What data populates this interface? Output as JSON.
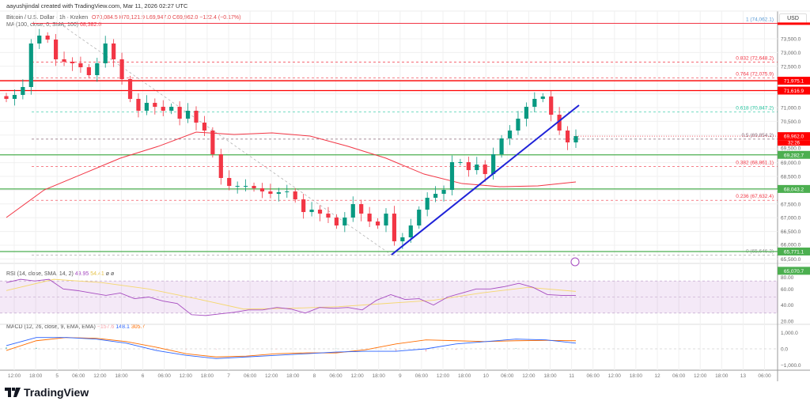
{
  "credit": "aayushjindal created with TradingView.com, Mar 11, 2026 02:27 UTC",
  "legend": {
    "symbol": "Bitcoin / U.S. Dollar · 1h · Kraken",
    "ohlc": "O70,084.5  H70,121.9  L69,947.0  C69,962.0  −122.4 (−0.17%)",
    "ma": "MA (100, close, 0, SMA, 100)",
    "ma_value": "68,382.0"
  },
  "currency": "USD",
  "brand": "TradingView",
  "countdown": "32:26",
  "colors": {
    "up": "#089981",
    "down": "#f23645",
    "ma": "#f23645",
    "trend": "#1e22d8",
    "rsi": "#a64bc0",
    "rsi_sma": "#f5d76e",
    "macd": "#2962ff",
    "signal": "#ff6d00",
    "support": "#4caf50",
    "resistance": "#ff0000"
  },
  "chart_data": {
    "type": "candlestick",
    "timeframe": "1h",
    "price_axis": {
      "min": 65000,
      "max": 74000,
      "ticks": [
        "73,500.0",
        "73,000.0",
        "72,500.0",
        "71,000.0",
        "70,500.0",
        "69,500.0",
        "69,000.0",
        "68,500.0",
        "67,500.0",
        "67,000.0",
        "66,500.0",
        "66,000.0",
        "65,500.0"
      ]
    },
    "time_ticks": [
      "12:00",
      "18:00",
      "5",
      "06:00",
      "12:00",
      "18:00",
      "6",
      "06:00",
      "12:00",
      "18:00",
      "7",
      "06:00",
      "12:00",
      "18:00",
      "8",
      "06:00",
      "12:00",
      "18:00",
      "9",
      "06:00",
      "12:00",
      "18:00",
      "10",
      "06:00",
      "12:00",
      "18:00",
      "11",
      "06:00",
      "12:00",
      "18:00",
      "12",
      "06:00",
      "12:00",
      "18:00",
      "13",
      "06:00"
    ],
    "closes": [
      71316,
      71460,
      71747,
      73328,
      73615,
      73471,
      72753,
      72667,
      72609,
      72465,
      72178,
      72609,
      73328,
      72753,
      72034,
      71316,
      70885,
      71172,
      71028,
      70885,
      71028,
      70597,
      70885,
      70454,
      70166,
      69304,
      68442,
      68155,
      68155,
      68155,
      68068,
      67953,
      67867,
      67925,
      67953,
      67666,
      67206,
      67292,
      67148,
      67005,
      66717,
      67005,
      67493,
      67148,
      66861,
      66717,
      67148,
      66142,
      66286,
      66717,
      67292,
      67723,
      67867,
      68011,
      69017,
      69017,
      68729,
      68930,
      68585,
      69304,
      69879,
      70166,
      70597,
      71028,
      71316,
      71402,
      70741,
      70166,
      69735,
      69965
    ],
    "ma100": [
      67005,
      68011,
      68585,
      69160,
      69591,
      70109,
      70022,
      70080,
      69965,
      69591,
      69160,
      68585,
      68240,
      68126,
      68155,
      68298
    ],
    "levels": [
      {
        "label": "74,062.1",
        "fib": "1 (74,062.1)",
        "price": 74062.1,
        "kind": "fib-top"
      },
      {
        "label": "71,975.1",
        "price": 71975.1,
        "kind": "resistance"
      },
      {
        "label": "71,616.9",
        "price": 71616.9,
        "kind": "resistance"
      },
      {
        "label": "69,282.7",
        "price": 69282.7,
        "kind": "support"
      },
      {
        "label": "68,043.2",
        "price": 68043.2,
        "kind": "support"
      },
      {
        "label": "65,771.1",
        "price": 65771.1,
        "kind": "support"
      },
      {
        "label": "65,070.7",
        "price": 65070.7,
        "kind": "support"
      }
    ],
    "fibs": [
      {
        "label": "0.832 (72,648.2)",
        "price": 72648.2,
        "color": "#f23645"
      },
      {
        "label": "0.764 (72,075.9)",
        "price": 72075.9,
        "color": "#f23645"
      },
      {
        "label": "0.618 (70,847.2)",
        "price": 70847.2,
        "color": "#26c6a0"
      },
      {
        "label": "0.5 (69,854.2)",
        "price": 69854.2,
        "color": "#8a6a7a"
      },
      {
        "label": "0.382 (68,861.1)",
        "price": 68861.1,
        "color": "#f23645"
      },
      {
        "label": "0.236 (67,632.4)",
        "price": 67632.4,
        "color": "#f23645"
      },
      {
        "label": "0 (65,646.2)",
        "price": 65646.2,
        "color": "#999999"
      }
    ],
    "last_price": {
      "label": "69,962.0",
      "price": 69962.0
    },
    "trendline": {
      "from": 65654,
      "to": 71086
    },
    "rsi": {
      "legend": "RSI (14, close, SMA, 14, 2)",
      "value": "49.95",
      "sma_value": "54.41",
      "extra": "ø ø",
      "ticks": [
        "80.00",
        "60.00",
        "40.00",
        "20.00"
      ],
      "values": [
        68,
        72,
        70,
        72,
        60,
        58,
        55,
        52,
        55,
        48,
        50,
        45,
        42,
        28,
        27,
        29,
        31,
        34,
        34,
        37,
        35,
        30,
        37,
        36,
        37,
        34,
        46,
        53,
        47,
        48,
        40,
        50,
        55,
        60,
        60,
        63,
        67,
        62,
        53,
        52,
        52
      ],
      "sma": [
        58,
        72,
        68,
        60,
        48,
        35,
        36,
        38,
        42,
        46,
        55,
        62,
        57
      ]
    },
    "macd": {
      "legend": "MACD (12, 26, close, 9, EMA, EMA)",
      "hist_value": "−157.6",
      "macd_value": "148.1",
      "signal_value": "305.7",
      "ticks": [
        "1,000.0",
        "0.0",
        "−1,000.0"
      ],
      "macd": [
        200,
        700,
        700,
        600,
        350,
        -100,
        -400,
        -600,
        -500,
        -400,
        -300,
        -200,
        -150,
        -150,
        0,
        300,
        450,
        600,
        550,
        350
      ],
      "signal": [
        -100,
        500,
        700,
        650,
        450,
        100,
        -300,
        -500,
        -450,
        -300,
        -250,
        -250,
        -50,
        300,
        550,
        500,
        450,
        500,
        520,
        500
      ]
    }
  }
}
